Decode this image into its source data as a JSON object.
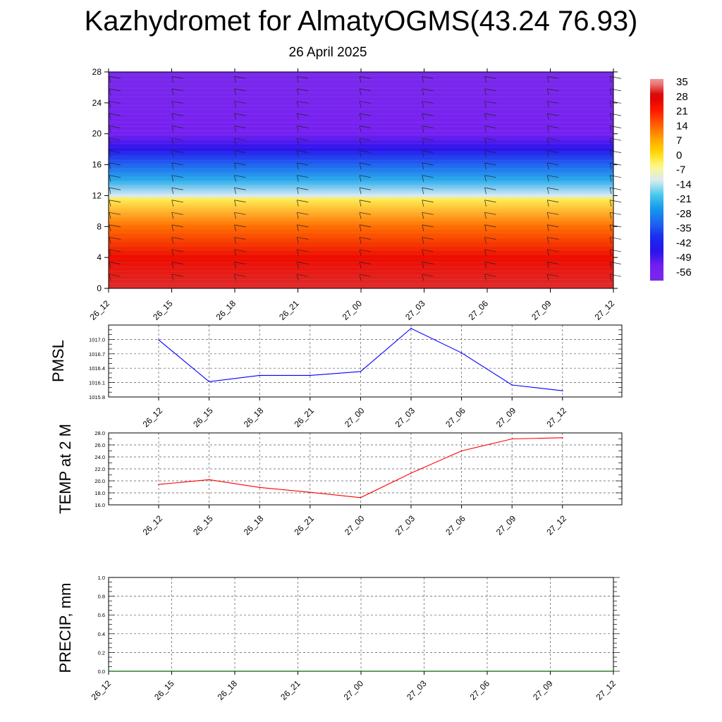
{
  "header": {
    "title": "Kazhydromet for AlmatyOGMS(43.24 76.93)",
    "subtitle": "26 April 2025"
  },
  "colors": {
    "pmsl_line": "#0000ff",
    "temp_line": "#ff0000",
    "precip_line": "#006400",
    "grid": "#555555"
  },
  "chart_data": [
    {
      "type": "heatmap",
      "name": "cross-section",
      "x_ticks": [
        "26_12",
        "26_15",
        "26_18",
        "26_21",
        "27_00",
        "27_03",
        "27_06",
        "27_09",
        "27_12"
      ],
      "y_ticks": [
        0,
        4,
        8,
        12,
        16,
        20,
        24,
        28
      ],
      "ylim": [
        0,
        28
      ],
      "colorbar_labels": [
        "35",
        "28",
        "21",
        "14",
        "7",
        "0",
        "-7",
        "-14",
        "-21",
        "-28",
        "-35",
        "-42",
        "-49",
        "-56"
      ],
      "temperature_profile": [
        {
          "level": 0,
          "value": 30
        },
        {
          "level": 4,
          "value": 24
        },
        {
          "level": 8,
          "value": 12
        },
        {
          "level": 11.5,
          "value": -4
        },
        {
          "level": 12,
          "value": -14
        },
        {
          "level": 14,
          "value": -25
        },
        {
          "level": 16,
          "value": -35
        },
        {
          "level": 18,
          "value": -49
        },
        {
          "level": 20,
          "value": -56
        },
        {
          "level": 24,
          "value": -60
        },
        {
          "level": 28,
          "value": -64
        }
      ]
    },
    {
      "type": "line",
      "ylabel": "PMSL",
      "x": [
        "26_12",
        "26_15",
        "26_18",
        "26_21",
        "27_00",
        "27_03",
        "27_06",
        "27_09",
        "27_12"
      ],
      "values": [
        1016.99,
        1016.12,
        1016.25,
        1016.25,
        1016.33,
        1017.23,
        1016.72,
        1016.05,
        1015.93
      ],
      "ylim": [
        1015.8,
        1017.3
      ],
      "y_ticks": [
        "1015.8",
        "1016.1",
        "1016.4",
        "1016.7",
        "1017.0"
      ],
      "y_tick_values": [
        1015.8,
        1016.1,
        1016.4,
        1016.7,
        1017.0
      ],
      "grid": true
    },
    {
      "type": "line",
      "ylabel": "TEMP at 2 M",
      "x": [
        "26_12",
        "26_15",
        "26_18",
        "26_21",
        "27_00",
        "27_03",
        "27_06",
        "27_09",
        "27_12"
      ],
      "values": [
        19.4,
        20.2,
        18.9,
        18.1,
        17.2,
        21.3,
        25.0,
        27.0,
        27.2
      ],
      "ylim": [
        16.0,
        28.0
      ],
      "y_ticks": [
        "16.0",
        "18.0",
        "20.0",
        "22.0",
        "24.0",
        "26.0",
        "28.0"
      ],
      "y_tick_values": [
        16,
        18,
        20,
        22,
        24,
        26,
        28
      ],
      "grid": true
    },
    {
      "type": "line",
      "ylabel": "PRECIP, mm",
      "x": [
        "26_12",
        "26_15",
        "26_18",
        "26_21",
        "27_00",
        "27_03",
        "27_06",
        "27_09",
        "27_12"
      ],
      "values": [
        0,
        0,
        0,
        0,
        0,
        0,
        0,
        0,
        0
      ],
      "ylim": [
        0.0,
        1.0
      ],
      "y_ticks": [
        "0.0",
        "0.2",
        "0.4",
        "0.6",
        "0.8",
        "1.0"
      ],
      "y_tick_values": [
        0,
        0.2,
        0.4,
        0.6,
        0.8,
        1.0
      ],
      "grid": true
    }
  ]
}
